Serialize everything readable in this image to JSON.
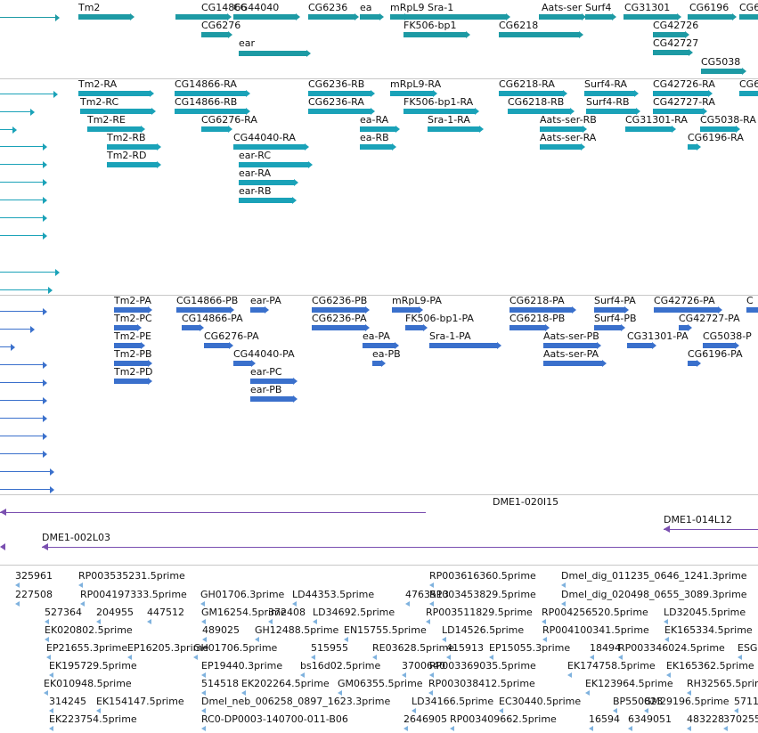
{
  "colors": {
    "gene": "#1d9aa4",
    "transcript": "#1aa2b8",
    "protein": "#3a70cc",
    "clone": "#7a4fb0",
    "est": "#7fb2de"
  },
  "gene_track": [
    {
      "label": "Tm2"
    },
    {
      "label": "CG14866"
    },
    {
      "label": "CG44040"
    },
    {
      "label": "CG6236"
    },
    {
      "label": "ea"
    },
    {
      "label": "mRpL9"
    },
    {
      "label": "Sra-1"
    },
    {
      "label": "Aats-ser"
    },
    {
      "label": "Surf4"
    },
    {
      "label": "CG31301"
    },
    {
      "label": "CG6196"
    },
    {
      "label": "CG6"
    },
    {
      "label": "CG6276"
    },
    {
      "label": "FK506-bp1"
    },
    {
      "label": "CG6218"
    },
    {
      "label": "CG42726"
    },
    {
      "label": "CG42727"
    },
    {
      "label": "ear"
    },
    {
      "label": "CG5038"
    }
  ],
  "transcript_track": [
    {
      "label": "Tm2-RA"
    },
    {
      "label": "CG14866-RA"
    },
    {
      "label": "CG6236-RB"
    },
    {
      "label": "mRpL9-RA"
    },
    {
      "label": "CG6218-RA"
    },
    {
      "label": "Surf4-RA"
    },
    {
      "label": "CG42726-RA"
    },
    {
      "label": "CG6"
    },
    {
      "label": "Tm2-RC"
    },
    {
      "label": "CG14866-RB"
    },
    {
      "label": "CG6236-RA"
    },
    {
      "label": "FK506-bp1-RA"
    },
    {
      "label": "CG6218-RB"
    },
    {
      "label": "Surf4-RB"
    },
    {
      "label": "CG42727-RA"
    },
    {
      "label": "Tm2-RE"
    },
    {
      "label": "CG6276-RA"
    },
    {
      "label": "ea-RA"
    },
    {
      "label": "Sra-1-RA"
    },
    {
      "label": "Aats-ser-RB"
    },
    {
      "label": "CG31301-RA"
    },
    {
      "label": "CG5038-RA"
    },
    {
      "label": "Tm2-RB"
    },
    {
      "label": "CG44040-RA"
    },
    {
      "label": "ea-RB"
    },
    {
      "label": "Aats-ser-RA"
    },
    {
      "label": "CG6196-RA"
    },
    {
      "label": "Tm2-RD"
    },
    {
      "label": "ear-RC"
    },
    {
      "label": "ear-RA"
    },
    {
      "label": "ear-RB"
    }
  ],
  "protein_track": [
    {
      "label": "Tm2-PA"
    },
    {
      "label": "CG14866-PB"
    },
    {
      "label": "ear-PA"
    },
    {
      "label": "CG6236-PB"
    },
    {
      "label": "mRpL9-PA"
    },
    {
      "label": "CG6218-PA"
    },
    {
      "label": "Surf4-PA"
    },
    {
      "label": "CG42726-PA"
    },
    {
      "label": "C"
    },
    {
      "label": "Tm2-PC"
    },
    {
      "label": "CG14866-PA"
    },
    {
      "label": "CG6236-PA"
    },
    {
      "label": "FK506-bp1-PA"
    },
    {
      "label": "CG6218-PB"
    },
    {
      "label": "Surf4-PB"
    },
    {
      "label": "CG42727-PA"
    },
    {
      "label": "Tm2-PE"
    },
    {
      "label": "CG6276-PA"
    },
    {
      "label": "ea-PA"
    },
    {
      "label": "Sra-1-PA"
    },
    {
      "label": "Aats-ser-PB"
    },
    {
      "label": "CG31301-PA"
    },
    {
      "label": "CG5038-P"
    },
    {
      "label": "Tm2-PB"
    },
    {
      "label": "CG44040-PA"
    },
    {
      "label": "ea-PB"
    },
    {
      "label": "Aats-ser-PA"
    },
    {
      "label": "CG6196-PA"
    },
    {
      "label": "Tm2-PD"
    },
    {
      "label": "ear-PC"
    },
    {
      "label": "ear-PB"
    }
  ],
  "clone_track": [
    {
      "label": "DME1-020I15"
    },
    {
      "label": "DME1-014L12"
    },
    {
      "label": "DME1-002L03"
    }
  ],
  "est_track": [
    {
      "label": "325961"
    },
    {
      "label": "RP003535231.5prime"
    },
    {
      "label": "RP003616360.5prime"
    },
    {
      "label": "Dmel_dig_011235_0646_1241.3prime"
    },
    {
      "label": "227508"
    },
    {
      "label": "RP004197333.5prime"
    },
    {
      "label": "GH01706.3prime"
    },
    {
      "label": "LD44353.5prime"
    },
    {
      "label": "4763513"
    },
    {
      "label": "RP003453829.5prime"
    },
    {
      "label": "Dmel_dig_020498_0655_3089.3prime"
    },
    {
      "label": "527364"
    },
    {
      "label": "204955"
    },
    {
      "label": "447512"
    },
    {
      "label": "GM16254.5prime"
    },
    {
      "label": "372408"
    },
    {
      "label": "LD34692.5prime"
    },
    {
      "label": "RP003511829.5prime"
    },
    {
      "label": "RP004256520.5prime"
    },
    {
      "label": "LD32045.5prime"
    },
    {
      "label": "EK020802.5prime"
    },
    {
      "label": "489025"
    },
    {
      "label": "GH12488.5prime"
    },
    {
      "label": "EN15755.5prime"
    },
    {
      "label": "LD14526.5prime"
    },
    {
      "label": "RP004100341.5prime"
    },
    {
      "label": "EK165334.5prime"
    },
    {
      "label": "EP21655.3prime"
    },
    {
      "label": "EP16205.3prime"
    },
    {
      "label": "GH01706.5prime"
    },
    {
      "label": "515955"
    },
    {
      "label": "RE03628.5prime"
    },
    {
      "label": "415913"
    },
    {
      "label": "EP15055.3prime"
    },
    {
      "label": "18494"
    },
    {
      "label": "RP003346024.5prime"
    },
    {
      "label": "ESG"
    },
    {
      "label": "EK195729.5prime"
    },
    {
      "label": "EP19440.3prime"
    },
    {
      "label": "bs16d02.5prime"
    },
    {
      "label": "3700640"
    },
    {
      "label": "RP003369035.5prime"
    },
    {
      "label": "EK174758.5prime"
    },
    {
      "label": "EK165362.5prime"
    },
    {
      "label": "EK010948.5prime"
    },
    {
      "label": "514518"
    },
    {
      "label": "EK202264.5prime"
    },
    {
      "label": "GM06355.5prime"
    },
    {
      "label": "RP003038412.5prime"
    },
    {
      "label": "EK123964.5prime"
    },
    {
      "label": "RH32565.5prime"
    },
    {
      "label": "314245"
    },
    {
      "label": "EK154147.5prime"
    },
    {
      "label": "Dmel_neb_006258_0897_1623.3prime"
    },
    {
      "label": "LD34166.5prime"
    },
    {
      "label": "EC30440.5prime"
    },
    {
      "label": "BP550823"
    },
    {
      "label": "GM29196.5prime"
    },
    {
      "label": "5711"
    },
    {
      "label": "EK223754.5prime"
    },
    {
      "label": "RC0-DP0003-140700-011-B06"
    },
    {
      "label": "2646905"
    },
    {
      "label": "RP003409662.5prime"
    },
    {
      "label": "16594"
    },
    {
      "label": "6349051"
    },
    {
      "label": "483228"
    },
    {
      "label": "370255"
    }
  ]
}
